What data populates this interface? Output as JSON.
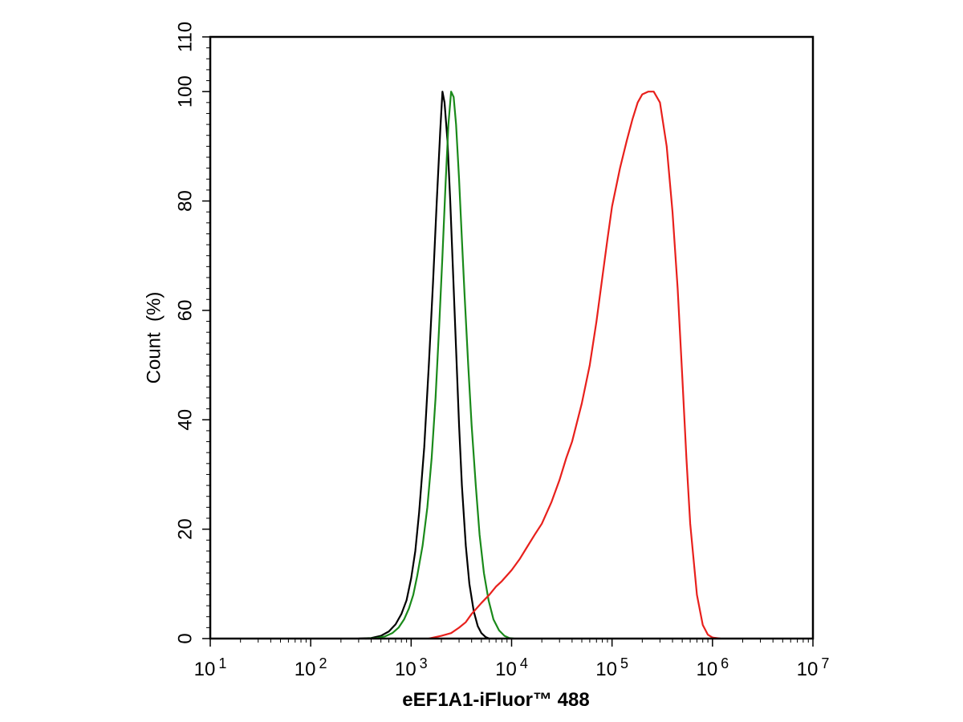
{
  "chart_data": {
    "type": "line",
    "title": "",
    "xlabel": "eEF1A1-iFluor™ 488",
    "ylabel": "Count  (%)",
    "xscale": "log",
    "xlim": [
      10,
      10000000
    ],
    "ylim": [
      0,
      110
    ],
    "x_tick_values": [
      10,
      100,
      1000,
      10000,
      100000,
      1000000,
      10000000
    ],
    "x_tick_labels": [
      {
        "base": "10",
        "exp": "1"
      },
      {
        "base": "10",
        "exp": "2"
      },
      {
        "base": "10",
        "exp": "3"
      },
      {
        "base": "10",
        "exp": "4"
      },
      {
        "base": "10",
        "exp": "5"
      },
      {
        "base": "10",
        "exp": "6"
      },
      {
        "base": "10",
        "exp": "7"
      }
    ],
    "y_ticks": [
      0,
      20,
      40,
      60,
      80,
      100,
      110
    ],
    "grid": false,
    "legend": "none",
    "series": [
      {
        "color": "#000000",
        "x": [
          300,
          400,
          500,
          600,
          700,
          800,
          900,
          1000,
          1100,
          1200,
          1350,
          1500,
          1650,
          1800,
          1950,
          2050,
          2150,
          2300,
          2450,
          2600,
          2800,
          3000,
          3200,
          3500,
          3800,
          4200,
          4600,
          5000,
          5500,
          6000
        ],
        "y": [
          0,
          0.1,
          0.5,
          1.3,
          2.6,
          4.5,
          7,
          11,
          16,
          23,
          35,
          50,
          65,
          80,
          93,
          100,
          98,
          91,
          80,
          68,
          53,
          39,
          28,
          17,
          10,
          5,
          2.3,
          1,
          0.3,
          0
        ]
      },
      {
        "color": "#1a8a1a",
        "x": [
          350,
          450,
          550,
          650,
          750,
          850,
          950,
          1050,
          1150,
          1300,
          1450,
          1600,
          1750,
          1900,
          2050,
          2200,
          2350,
          2500,
          2650,
          2800,
          3000,
          3200,
          3400,
          3700,
          4000,
          4400,
          4800,
          5300,
          5900,
          6600,
          7500,
          8500,
          9500,
          10500
        ],
        "y": [
          0,
          0.1,
          0.4,
          1,
          2,
          3.5,
          5.5,
          8,
          11.5,
          17,
          24,
          33,
          44,
          57,
          70,
          83,
          94,
          100,
          99,
          94,
          84,
          73,
          63,
          50,
          39,
          28,
          19,
          12,
          7,
          3.5,
          1.5,
          0.5,
          0.1,
          0
        ]
      },
      {
        "color": "#e8201c",
        "x": [
          1500,
          2000,
          2500,
          3000,
          3500,
          4000,
          5000,
          6000,
          7000,
          8000,
          10000,
          12000,
          14000,
          17000,
          20000,
          25000,
          30000,
          35000,
          40000,
          50000,
          60000,
          70000,
          80000,
          90000,
          100000,
          120000,
          140000,
          160000,
          180000,
          200000,
          230000,
          260000,
          300000,
          350000,
          400000,
          450000,
          500000,
          550000,
          600000,
          700000,
          800000,
          900000,
          1000000,
          1200000
        ],
        "y": [
          0,
          0.5,
          1,
          2,
          3,
          4.5,
          6.5,
          8,
          9.5,
          10.5,
          12.5,
          14.5,
          16.5,
          19,
          21,
          25,
          29,
          33,
          36,
          43,
          50,
          58,
          66,
          73,
          79,
          86,
          91,
          95,
          98,
          99.5,
          100,
          100,
          98,
          90,
          78,
          64,
          48,
          33,
          21,
          8,
          2.5,
          0.7,
          0.2,
          0
        ]
      }
    ]
  }
}
